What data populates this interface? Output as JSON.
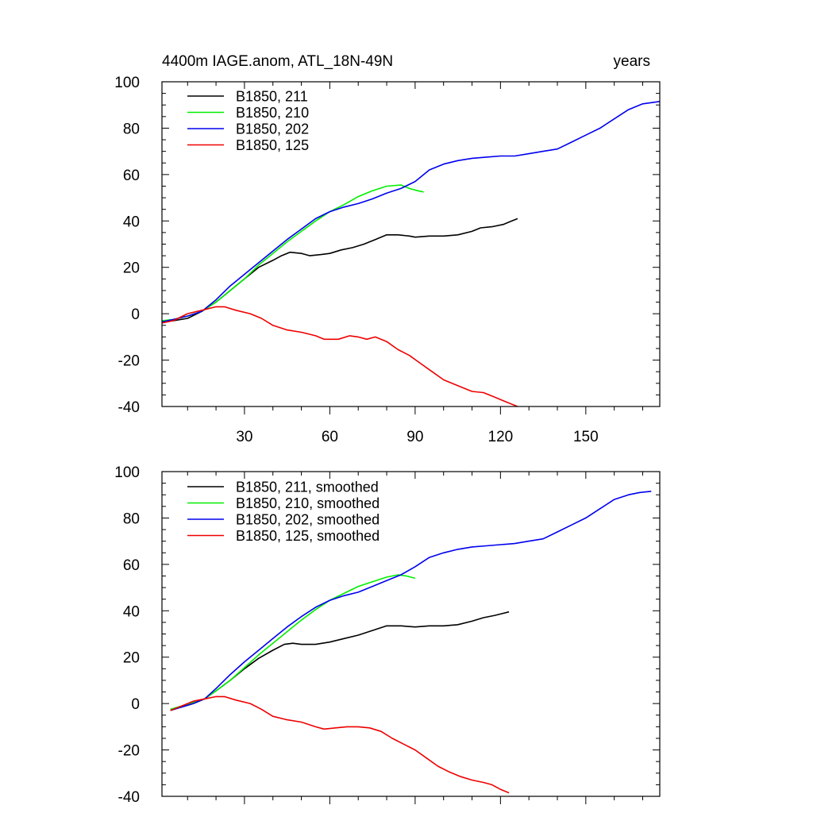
{
  "chart_data": [
    {
      "type": "line",
      "title": "4400m IAGE.anom, ATL_18N-49N",
      "title_right": "years",
      "xlim": [
        1,
        176
      ],
      "ylim": [
        -40,
        100
      ],
      "x_ticks": [
        30,
        60,
        90,
        120,
        150
      ],
      "x_tick_labels": [
        "30",
        "60",
        "90",
        "120",
        "150"
      ],
      "y_ticks": [
        -40,
        -20,
        0,
        20,
        40,
        60,
        80,
        100
      ],
      "y_tick_labels": [
        "-40",
        "-20",
        "0",
        "20",
        "40",
        "60",
        "80",
        "100"
      ],
      "grid": false,
      "legend_placement": "top-left",
      "series": [
        {
          "name": "B1850, 211",
          "color": "#000000",
          "points": [
            [
              1,
              -3.5
            ],
            [
              5,
              -3
            ],
            [
              10,
              -2
            ],
            [
              15,
              1
            ],
            [
              20,
              5
            ],
            [
              25,
              10
            ],
            [
              30,
              15
            ],
            [
              35,
              20
            ],
            [
              40,
              23
            ],
            [
              43,
              25
            ],
            [
              46,
              26.5
            ],
            [
              50,
              26
            ],
            [
              53,
              25
            ],
            [
              57,
              25.5
            ],
            [
              60,
              26
            ],
            [
              64,
              27.5
            ],
            [
              68,
              28.5
            ],
            [
              72,
              30
            ],
            [
              76,
              32
            ],
            [
              80,
              34
            ],
            [
              84,
              34
            ],
            [
              88,
              33.5
            ],
            [
              90,
              33
            ],
            [
              95,
              33.5
            ],
            [
              100,
              33.5
            ],
            [
              105,
              34
            ],
            [
              110,
              35.5
            ],
            [
              113,
              37
            ],
            [
              117,
              37.5
            ],
            [
              121,
              38.5
            ],
            [
              124,
              40
            ],
            [
              126,
              41
            ]
          ]
        },
        {
          "name": "B1850, 210",
          "color": "#00ee00",
          "points": [
            [
              1,
              -3
            ],
            [
              5,
              -2.5
            ],
            [
              10,
              -1
            ],
            [
              15,
              1
            ],
            [
              20,
              5
            ],
            [
              25,
              10
            ],
            [
              30,
              15
            ],
            [
              35,
              21
            ],
            [
              40,
              26
            ],
            [
              45,
              31
            ],
            [
              50,
              35.5
            ],
            [
              55,
              40
            ],
            [
              60,
              44
            ],
            [
              65,
              47
            ],
            [
              70,
              50.5
            ],
            [
              75,
              53
            ],
            [
              80,
              55
            ],
            [
              85,
              55.5
            ],
            [
              88,
              54
            ],
            [
              91,
              53
            ],
            [
              93,
              52.5
            ]
          ]
        },
        {
          "name": "B1850, 202",
          "color": "#0000ee",
          "points": [
            [
              1,
              -3.5
            ],
            [
              5,
              -2.5
            ],
            [
              10,
              -1
            ],
            [
              15,
              1
            ],
            [
              20,
              6
            ],
            [
              25,
              12
            ],
            [
              30,
              17
            ],
            [
              35,
              22
            ],
            [
              40,
              27
            ],
            [
              45,
              32
            ],
            [
              50,
              36.5
            ],
            [
              55,
              41
            ],
            [
              60,
              44
            ],
            [
              65,
              46
            ],
            [
              70,
              47.5
            ],
            [
              75,
              49.5
            ],
            [
              80,
              52
            ],
            [
              85,
              54
            ],
            [
              90,
              57
            ],
            [
              95,
              62
            ],
            [
              100,
              64.5
            ],
            [
              105,
              66
            ],
            [
              110,
              67
            ],
            [
              115,
              67.5
            ],
            [
              120,
              68
            ],
            [
              125,
              68
            ],
            [
              130,
              69
            ],
            [
              135,
              70
            ],
            [
              140,
              71
            ],
            [
              145,
              74
            ],
            [
              150,
              77
            ],
            [
              155,
              80
            ],
            [
              160,
              84
            ],
            [
              165,
              88
            ],
            [
              170,
              90.5
            ],
            [
              176,
              91.5
            ]
          ]
        },
        {
          "name": "B1850, 125",
          "color": "#ee0000",
          "points": [
            [
              1,
              -4
            ],
            [
              5,
              -3
            ],
            [
              10,
              0
            ],
            [
              15,
              1.5
            ],
            [
              20,
              3
            ],
            [
              23,
              3
            ],
            [
              27,
              1.5
            ],
            [
              32,
              0
            ],
            [
              36,
              -2
            ],
            [
              40,
              -5
            ],
            [
              45,
              -7
            ],
            [
              50,
              -8
            ],
            [
              55,
              -9.5
            ],
            [
              58,
              -11
            ],
            [
              63,
              -11
            ],
            [
              67,
              -9.5
            ],
            [
              70,
              -10
            ],
            [
              73,
              -11
            ],
            [
              76,
              -10
            ],
            [
              80,
              -12
            ],
            [
              84,
              -15.5
            ],
            [
              88,
              -18
            ],
            [
              92,
              -21.5
            ],
            [
              96,
              -25
            ],
            [
              100,
              -28.5
            ],
            [
              105,
              -31
            ],
            [
              110,
              -33.5
            ],
            [
              114,
              -34
            ],
            [
              118,
              -36
            ],
            [
              122,
              -38
            ],
            [
              126,
              -40
            ]
          ]
        }
      ]
    },
    {
      "type": "line",
      "xlim": [
        1,
        176
      ],
      "ylim": [
        -40,
        100
      ],
      "x_ticks": [
        30,
        60,
        90,
        120,
        150
      ],
      "x_tick_labels": [],
      "y_ticks": [
        -40,
        -20,
        0,
        20,
        40,
        60,
        80,
        100
      ],
      "y_tick_labels": [
        "-40",
        "-20",
        "0",
        "20",
        "40",
        "60",
        "80",
        "100"
      ],
      "grid": false,
      "legend_placement": "top-left",
      "series": [
        {
          "name": "B1850, 211, smoothed",
          "color": "#000000",
          "points": [
            [
              4,
              -2.5
            ],
            [
              8,
              -1.5
            ],
            [
              12,
              0
            ],
            [
              16,
              2
            ],
            [
              20,
              5.5
            ],
            [
              25,
              10
            ],
            [
              30,
              15
            ],
            [
              35,
              19.5
            ],
            [
              40,
              23
            ],
            [
              44,
              25.5
            ],
            [
              47,
              26
            ],
            [
              50,
              25.5
            ],
            [
              55,
              25.5
            ],
            [
              60,
              26.5
            ],
            [
              65,
              28
            ],
            [
              70,
              29.5
            ],
            [
              75,
              31.5
            ],
            [
              80,
              33.5
            ],
            [
              85,
              33.5
            ],
            [
              90,
              33
            ],
            [
              95,
              33.5
            ],
            [
              100,
              33.5
            ],
            [
              105,
              34
            ],
            [
              110,
              35.5
            ],
            [
              114,
              37
            ],
            [
              118,
              38
            ],
            [
              123,
              39.5
            ]
          ]
        },
        {
          "name": "B1850, 210, smoothed",
          "color": "#00ee00",
          "points": [
            [
              4,
              -2.5
            ],
            [
              8,
              -1
            ],
            [
              12,
              0.5
            ],
            [
              16,
              2
            ],
            [
              20,
              5.5
            ],
            [
              25,
              10
            ],
            [
              30,
              15.5
            ],
            [
              35,
              21
            ],
            [
              40,
              26
            ],
            [
              45,
              31
            ],
            [
              50,
              36
            ],
            [
              55,
              40.5
            ],
            [
              60,
              44.5
            ],
            [
              65,
              47.5
            ],
            [
              70,
              50.5
            ],
            [
              75,
              52.5
            ],
            [
              80,
              54.5
            ],
            [
              84,
              55.5
            ],
            [
              87,
              55
            ],
            [
              90,
              54
            ]
          ]
        },
        {
          "name": "B1850, 202, smoothed",
          "color": "#0000ee",
          "points": [
            [
              4,
              -3
            ],
            [
              8,
              -1.5
            ],
            [
              12,
              0
            ],
            [
              16,
              2
            ],
            [
              20,
              6.5
            ],
            [
              25,
              12.5
            ],
            [
              30,
              18
            ],
            [
              35,
              23
            ],
            [
              40,
              28
            ],
            [
              45,
              33
            ],
            [
              50,
              37.5
            ],
            [
              55,
              41.5
            ],
            [
              60,
              44.5
            ],
            [
              65,
              46.5
            ],
            [
              70,
              48
            ],
            [
              75,
              50.5
            ],
            [
              80,
              53
            ],
            [
              85,
              55.5
            ],
            [
              90,
              59
            ],
            [
              95,
              63
            ],
            [
              100,
              65
            ],
            [
              105,
              66.5
            ],
            [
              110,
              67.5
            ],
            [
              115,
              68
            ],
            [
              120,
              68.5
            ],
            [
              125,
              69
            ],
            [
              130,
              70
            ],
            [
              135,
              71
            ],
            [
              140,
              74
            ],
            [
              145,
              77
            ],
            [
              150,
              80
            ],
            [
              155,
              84
            ],
            [
              160,
              88
            ],
            [
              165,
              90
            ],
            [
              169,
              91
            ],
            [
              173,
              91.5
            ]
          ]
        },
        {
          "name": "B1850, 125, smoothed",
          "color": "#ee0000",
          "points": [
            [
              4,
              -3
            ],
            [
              8,
              -1
            ],
            [
              12,
              1
            ],
            [
              16,
              2
            ],
            [
              20,
              3
            ],
            [
              23,
              3
            ],
            [
              27,
              1.5
            ],
            [
              32,
              0
            ],
            [
              36,
              -2.5
            ],
            [
              40,
              -5.5
            ],
            [
              45,
              -7
            ],
            [
              50,
              -8
            ],
            [
              55,
              -10
            ],
            [
              58,
              -11
            ],
            [
              62,
              -10.5
            ],
            [
              66,
              -10
            ],
            [
              70,
              -10
            ],
            [
              74,
              -10.5
            ],
            [
              78,
              -12
            ],
            [
              82,
              -15
            ],
            [
              86,
              -17.5
            ],
            [
              90,
              -20
            ],
            [
              94,
              -23.5
            ],
            [
              98,
              -27
            ],
            [
              102,
              -29.5
            ],
            [
              106,
              -31.5
            ],
            [
              110,
              -33
            ],
            [
              114,
              -34
            ],
            [
              117,
              -35
            ],
            [
              120,
              -37
            ],
            [
              123,
              -38.5
            ]
          ]
        }
      ]
    }
  ]
}
